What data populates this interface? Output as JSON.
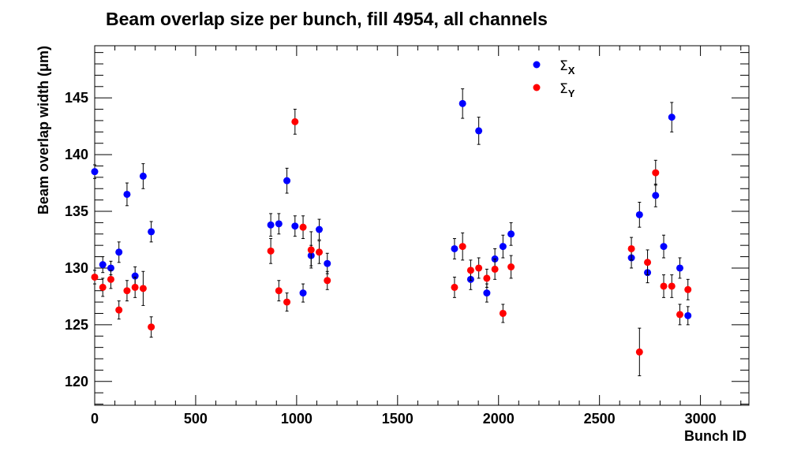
{
  "chart_data": {
    "type": "scatter",
    "title": "Beam overlap size per bunch, fill 4954, all channels",
    "xlabel": "Bunch ID",
    "ylabel": "Beam overlap width (μm)",
    "xlim": [
      0,
      3240
    ],
    "ylim": [
      117.9,
      149.6
    ],
    "x_ticks": [
      0,
      500,
      1000,
      1500,
      2000,
      2500,
      3000
    ],
    "y_ticks": [
      120,
      125,
      130,
      135,
      140,
      145
    ],
    "grid": false,
    "legend_position": "top-right",
    "series": [
      {
        "name": "ΣX",
        "legend_symbol": "Σ",
        "legend_subscript": "X",
        "color": "#0000ff",
        "points": [
          {
            "x": 0,
            "y": 138.5,
            "err": 0.6
          },
          {
            "x": 40,
            "y": 130.3,
            "err": 0.7
          },
          {
            "x": 80,
            "y": 130.0,
            "err": 0.6
          },
          {
            "x": 120,
            "y": 131.4,
            "err": 0.9
          },
          {
            "x": 160,
            "y": 136.5,
            "err": 1.0
          },
          {
            "x": 200,
            "y": 129.3,
            "err": 0.8
          },
          {
            "x": 240,
            "y": 138.1,
            "err": 1.1
          },
          {
            "x": 280,
            "y": 133.2,
            "err": 0.9
          },
          {
            "x": 872,
            "y": 133.8,
            "err": 1.0
          },
          {
            "x": 912,
            "y": 133.9,
            "err": 0.9
          },
          {
            "x": 952,
            "y": 137.7,
            "err": 1.1
          },
          {
            "x": 992,
            "y": 133.7,
            "err": 0.9
          },
          {
            "x": 1032,
            "y": 127.8,
            "err": 0.8
          },
          {
            "x": 1072,
            "y": 131.1,
            "err": 0.9
          },
          {
            "x": 1112,
            "y": 133.4,
            "err": 0.9
          },
          {
            "x": 1152,
            "y": 130.4,
            "err": 0.9
          },
          {
            "x": 1782,
            "y": 131.7,
            "err": 0.9
          },
          {
            "x": 1822,
            "y": 144.5,
            "err": 1.3
          },
          {
            "x": 1862,
            "y": 129.0,
            "err": 0.9
          },
          {
            "x": 1902,
            "y": 142.1,
            "err": 1.2
          },
          {
            "x": 1942,
            "y": 127.8,
            "err": 0.8
          },
          {
            "x": 1982,
            "y": 130.8,
            "err": 0.9
          },
          {
            "x": 2022,
            "y": 131.9,
            "err": 1.0
          },
          {
            "x": 2062,
            "y": 133.0,
            "err": 1.0
          },
          {
            "x": 2658,
            "y": 130.9,
            "err": 0.9
          },
          {
            "x": 2698,
            "y": 134.7,
            "err": 1.1
          },
          {
            "x": 2738,
            "y": 129.6,
            "err": 0.9
          },
          {
            "x": 2778,
            "y": 136.4,
            "err": 1.0
          },
          {
            "x": 2818,
            "y": 131.9,
            "err": 1.0
          },
          {
            "x": 2858,
            "y": 143.3,
            "err": 1.3
          },
          {
            "x": 2898,
            "y": 130.0,
            "err": 0.9
          },
          {
            "x": 2938,
            "y": 125.8,
            "err": 0.8
          }
        ]
      },
      {
        "name": "ΣY",
        "legend_symbol": "Σ",
        "legend_subscript": "Y",
        "color": "#ff0000",
        "points": [
          {
            "x": 0,
            "y": 129.2,
            "err": 0.6
          },
          {
            "x": 40,
            "y": 128.3,
            "err": 0.8
          },
          {
            "x": 80,
            "y": 129.0,
            "err": 0.8
          },
          {
            "x": 120,
            "y": 126.3,
            "err": 0.8
          },
          {
            "x": 160,
            "y": 128.0,
            "err": 0.9
          },
          {
            "x": 200,
            "y": 128.3,
            "err": 0.9
          },
          {
            "x": 240,
            "y": 128.2,
            "err": 1.5
          },
          {
            "x": 280,
            "y": 124.8,
            "err": 0.9
          },
          {
            "x": 872,
            "y": 131.5,
            "err": 1.1
          },
          {
            "x": 912,
            "y": 128.0,
            "err": 0.9
          },
          {
            "x": 952,
            "y": 127.0,
            "err": 0.8
          },
          {
            "x": 992,
            "y": 142.9,
            "err": 1.1
          },
          {
            "x": 1032,
            "y": 133.6,
            "err": 1.0
          },
          {
            "x": 1072,
            "y": 131.6,
            "err": 1.6
          },
          {
            "x": 1112,
            "y": 131.4,
            "err": 1.0
          },
          {
            "x": 1152,
            "y": 128.9,
            "err": 0.8
          },
          {
            "x": 1782,
            "y": 128.3,
            "err": 0.9
          },
          {
            "x": 1822,
            "y": 131.9,
            "err": 1.2
          },
          {
            "x": 1862,
            "y": 129.8,
            "err": 0.9
          },
          {
            "x": 1902,
            "y": 130.0,
            "err": 0.9
          },
          {
            "x": 1942,
            "y": 129.1,
            "err": 0.8
          },
          {
            "x": 1982,
            "y": 129.9,
            "err": 0.9
          },
          {
            "x": 2022,
            "y": 126.0,
            "err": 0.8
          },
          {
            "x": 2062,
            "y": 130.1,
            "err": 1.0
          },
          {
            "x": 2658,
            "y": 131.7,
            "err": 1.0
          },
          {
            "x": 2698,
            "y": 122.6,
            "err": 2.1
          },
          {
            "x": 2738,
            "y": 130.5,
            "err": 1.1
          },
          {
            "x": 2778,
            "y": 138.4,
            "err": 1.1
          },
          {
            "x": 2818,
            "y": 128.4,
            "err": 1.0
          },
          {
            "x": 2858,
            "y": 128.4,
            "err": 1.0
          },
          {
            "x": 2898,
            "y": 125.9,
            "err": 0.9
          },
          {
            "x": 2938,
            "y": 128.1,
            "err": 0.9
          }
        ]
      }
    ]
  }
}
